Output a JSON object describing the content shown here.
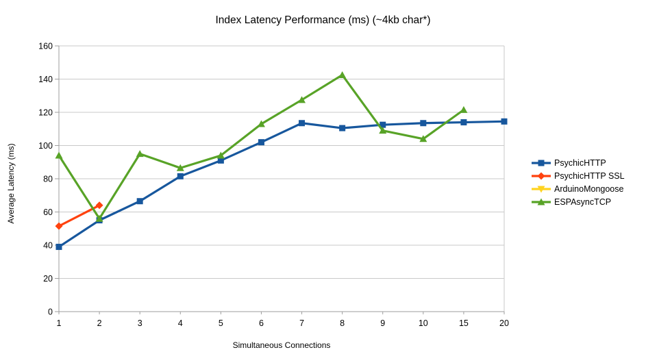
{
  "page": {
    "background": "#ffffff"
  },
  "chart_data": {
    "type": "line",
    "title": "Index Latency Performance (ms) (~4kb char*)",
    "xlabel": "Simultaneous Connections",
    "ylabel": "Average Latency (ms)",
    "categories": [
      "1",
      "2",
      "3",
      "4",
      "5",
      "6",
      "7",
      "8",
      "9",
      "10",
      "15",
      "20"
    ],
    "ylim": [
      0,
      160
    ],
    "ytick_step": 20,
    "ytick_labels": [
      "0",
      "20",
      "40",
      "60",
      "80",
      "100",
      "120",
      "140",
      "160"
    ],
    "grid": "horizontal",
    "legend_position": "right",
    "colors": {
      "gridline": "#c9c9c9",
      "axis": "#9e9e9e",
      "plot_right_border": "#c9c9c9",
      "text": "#000000"
    },
    "series": [
      {
        "name": "PsychicHTTP",
        "color": "#17579D",
        "marker": "square",
        "values": [
          39,
          55,
          66.5,
          81.5,
          91,
          102,
          113.5,
          110.5,
          112.5,
          113.5,
          114,
          114.5
        ]
      },
      {
        "name": "PsychicHTTP SSL",
        "color": "#FF420E",
        "marker": "diamond",
        "values": [
          51.5,
          64,
          null,
          null,
          null,
          null,
          null,
          null,
          null,
          null,
          null,
          null
        ]
      },
      {
        "name": "ArduinoMongoose",
        "color": "#FFD320",
        "marker": "triangle-down",
        "values": [
          null,
          null,
          null,
          null,
          null,
          null,
          null,
          null,
          null,
          null,
          null,
          null
        ]
      },
      {
        "name": "ESPAsyncTCP",
        "color": "#58A327",
        "marker": "triangle-up",
        "values": [
          94,
          56,
          95,
          86.5,
          94,
          113,
          127.5,
          142.5,
          109,
          104,
          121.5,
          null
        ]
      }
    ]
  }
}
